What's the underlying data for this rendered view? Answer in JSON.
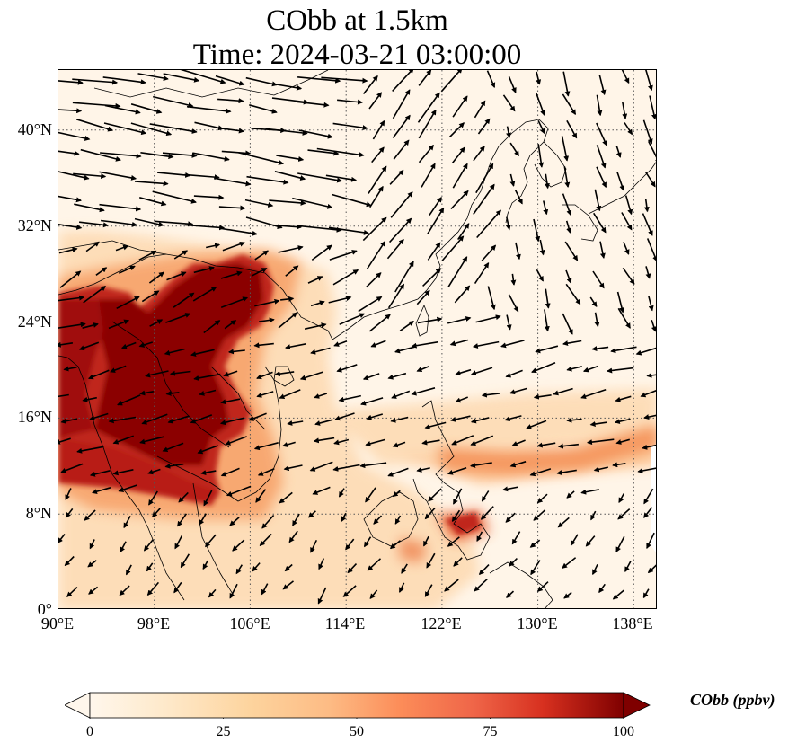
{
  "title": {
    "line1": "CObb at 1.5km",
    "line2": "Time: 2024-03-21 03:00:00"
  },
  "map": {
    "lon_range": [
      90,
      140
    ],
    "lat_range": [
      0,
      45
    ],
    "lat_ticks": [
      "0°",
      "8°N",
      "16°N",
      "24°N",
      "32°N",
      "40°N"
    ],
    "lat_values": [
      0,
      8,
      16,
      24,
      32,
      40
    ],
    "lon_ticks": [
      "90°E",
      "98°E",
      "106°E",
      "114°E",
      "122°E",
      "130°E",
      "138°E"
    ],
    "lon_values": [
      90,
      98,
      106,
      114,
      122,
      130,
      138
    ],
    "gridlines": "dotted",
    "colors": {
      "background": "#fff5e8",
      "low": "#fde2c0",
      "mid": "#f7a36a",
      "high": "#d8401f",
      "max": "#8b0000",
      "coast": "#000000",
      "arrow": "#000000"
    }
  },
  "colorbar": {
    "label": "CObb (ppbv)",
    "ticks": [
      "0",
      "25",
      "50",
      "75",
      "100"
    ],
    "tick_values": [
      0,
      25,
      50,
      75,
      100
    ],
    "range": [
      0,
      100
    ],
    "extend": "both",
    "colormap": "OrRd"
  }
}
